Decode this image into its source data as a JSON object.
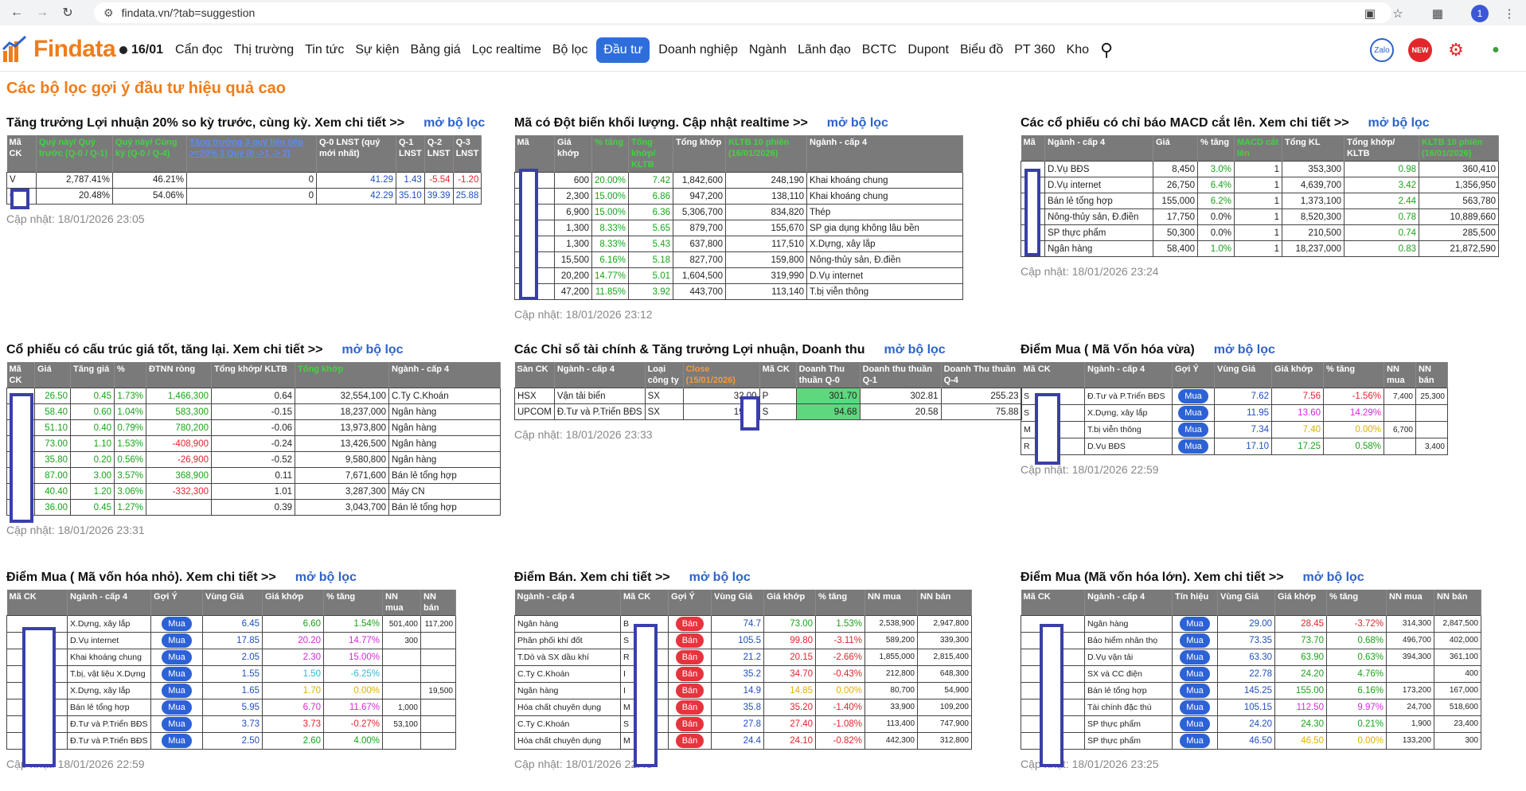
{
  "browser": {
    "url": "findata.vn/?tab=suggestion"
  },
  "nav": {
    "logo": "Findata",
    "date": "16/01",
    "items": [
      "Cẩn đọc",
      "Thị trường",
      "Tin tức",
      "Sự kiện",
      "Bảng giá",
      "Lọc realtime",
      "Bộ lọc",
      "Đầu tư",
      "Doanh nghiệp",
      "Ngành",
      "Lãnh đạo",
      "BCTC",
      "Dupont",
      "Biểu đồ",
      "PT 360",
      "Kho"
    ],
    "active_index": 7,
    "zalo": "Zalo",
    "new_badge": "NEW"
  },
  "page_title": "Các bộ lọc gợi ý đầu tư hiệu quả cao",
  "open_label": "mở bộ lọc",
  "p1": {
    "title": "Tăng trưởng Lợi nhuận 20% so kỳ trước, cùng kỳ. Xem chi tiết >>",
    "headers": [
      "Mã CK",
      "Quý này/ Quý trước (Q-0 / Q-1)",
      "Quý này/ Cùng kỳ (Q-0 / Q-4)",
      "Tăng trưởng 3 quý liên tiếp >=20% 3 Quý (0 ->1 -> 2)",
      "Q-0 LNST (quý mới nhất)",
      "Q-1 LNST",
      "Q-2 LNST",
      "Q-3 LNST"
    ],
    "rows": [
      [
        "V",
        "2,787.41%",
        "46.21%",
        "0",
        "41.29",
        "1.43",
        "-5.54",
        "-1.20"
      ],
      [
        "C",
        "20.48%",
        "54.06%",
        "0",
        "42.29",
        "35.10",
        "39.39",
        "25.88"
      ]
    ],
    "updated": "Cập nhật: 18/01/2026 23:05"
  },
  "p2": {
    "title": "Mã có Đột biến khối lượng. Cập nhật realtime >>",
    "headers": [
      "Mã",
      "Giá khớp",
      "% tăng",
      "Tổng khớp/ KLTB",
      "Tổng khớp",
      "KLTB 10 phiên (16/01/2026)",
      "Ngành - cấp 4"
    ],
    "rows": [
      [
        "",
        "600",
        "20.00%",
        "7.42",
        "1,842,600",
        "248,190",
        "Khai khoáng chung"
      ],
      [
        "",
        "2,300",
        "15.00%",
        "6.86",
        "947,200",
        "138,110",
        "Khai khoáng chung"
      ],
      [
        "",
        "6,900",
        "15.00%",
        "6.36",
        "5,306,700",
        "834,820",
        "Thép"
      ],
      [
        "",
        "1,300",
        "8.33%",
        "5.65",
        "879,700",
        "155,670",
        "SP gia dụng không lâu bền"
      ],
      [
        "",
        "1,300",
        "8.33%",
        "5.43",
        "637,800",
        "117,510",
        "X.Dựng, xây lắp"
      ],
      [
        "",
        "15,500",
        "6.16%",
        "5.18",
        "827,700",
        "159,800",
        "Nông-thủy sản, Đ.điền"
      ],
      [
        "",
        "20,200",
        "14.77%",
        "5.01",
        "1,604,500",
        "319,990",
        "D.Vụ internet"
      ],
      [
        "",
        "47,200",
        "11.85%",
        "3.92",
        "443,700",
        "113,140",
        "T.bị viễn thông"
      ]
    ],
    "updated": "Cập nhật: 18/01/2026 23:12"
  },
  "p3": {
    "title": "Các cổ phiếu có chỉ báo MACD cắt lên. Xem chi tiết >>",
    "headers": [
      "Mã",
      "Ngành - cấp 4",
      "Giá",
      "% tăng",
      "MACD cắt lên",
      "Tổng KL",
      "Tổng khớp/ KLTB",
      "KLTB 10 phiên (16/01/2026)"
    ],
    "rows": [
      [
        "",
        "D.Vụ BĐS",
        "8,450",
        "3.0%",
        "1",
        "353,300",
        "0.98",
        "360,410"
      ],
      [
        "",
        "D.Vụ internet",
        "26,750",
        "6.4%",
        "1",
        "4,639,700",
        "3.42",
        "1,356,950"
      ],
      [
        "",
        "Bán lẻ tổng hợp",
        "155,000",
        "6.2%",
        "1",
        "1,373,100",
        "2.44",
        "563,780"
      ],
      [
        "",
        "Nông-thủy sản, Đ.điền",
        "17,750",
        "0.0%",
        "1",
        "8,520,300",
        "0.78",
        "10,889,660"
      ],
      [
        "",
        "SP thực phẩm",
        "50,300",
        "0.0%",
        "1",
        "210,500",
        "0.74",
        "285,500"
      ],
      [
        "",
        "Ngân hàng",
        "58,400",
        "1.0%",
        "1",
        "18,237,000",
        "0.83",
        "21,872,590"
      ]
    ],
    "updated": "Cập nhật: 18/01/2026 23:24"
  },
  "p4": {
    "title": "Cổ phiếu có cấu trúc giá tốt, tăng lại. Xem chi tiết >>",
    "headers": [
      "Mã CK",
      "Giá",
      "Tăng giá",
      "%",
      "ĐTNN ròng",
      "Tổng khớp/ KLTB",
      "Tổng khớp",
      "Ngành - cấp 4"
    ],
    "rows": [
      [
        "",
        "26.50",
        "0.45",
        "1.73%",
        "1,466,300",
        "0.64",
        "32,554,100",
        "C.Ty C.Khoán"
      ],
      [
        "",
        "58.40",
        "0.60",
        "1.04%",
        "583,300",
        "-0.15",
        "18,237,000",
        "Ngân hàng"
      ],
      [
        "",
        "51.10",
        "0.40",
        "0.79%",
        "780,200",
        "-0.06",
        "13,973,800",
        "Ngân hàng"
      ],
      [
        "",
        "73.00",
        "1.10",
        "1.53%",
        "-408,900",
        "-0.24",
        "13,426,500",
        "Ngân hàng"
      ],
      [
        "",
        "35.80",
        "0.20",
        "0.56%",
        "-26,900",
        "-0.52",
        "9,580,800",
        "Ngân hàng"
      ],
      [
        "",
        "87.00",
        "3.00",
        "3.57%",
        "368,900",
        "0.11",
        "7,671,600",
        "Bán lẻ tổng hợp"
      ],
      [
        "",
        "40.40",
        "1.20",
        "3.06%",
        "-332,300",
        "1.01",
        "3,287,300",
        "Máy CN"
      ],
      [
        "",
        "36.00",
        "0.45",
        "1.27%",
        "",
        "0.39",
        "3,043,700",
        "Bán lẻ tổng hợp"
      ]
    ],
    "updated": "Cập nhật: 18/01/2026 23:31"
  },
  "p5": {
    "title": "Các Chỉ số tài chính & Tăng trưởng Lợi nhuận, Doanh thu",
    "headers": [
      "Sàn CK",
      "Ngành - cấp 4",
      "Loại công ty",
      "Close (15/01/2026)",
      "Mã CK",
      "Doanh Thu thuần Q-0",
      "Doanh thu thuần Q-1",
      "Doanh Thu thuần Q-4"
    ],
    "rows": [
      [
        "HSX",
        "Vận tải biển",
        "SX",
        "32.00",
        "P",
        "301.70",
        "302.81",
        "255.23"
      ],
      [
        "UPCOM",
        "Đ.Tư và P.Triển BĐS",
        "SX",
        "19.00",
        "S",
        "94.68",
        "20.58",
        "75.88"
      ]
    ],
    "updated": "Cập nhật: 18/01/2026 23:33"
  },
  "p6": {
    "title": "Điểm Mua ( Mã Vốn hóa vừa)",
    "headers": [
      "Mã CK",
      "Ngành - cấp 4",
      "Gợi Ý",
      "Vùng Giá",
      "Giá khớp",
      "% tăng",
      "NN mua",
      "NN bán"
    ],
    "rows": [
      [
        "S",
        "Đ.Tư và P.Triển BĐS",
        "Mua",
        "7.62",
        "7.56",
        "-1.56%",
        "7,400",
        "25,300"
      ],
      [
        "S",
        "X.Dựng, xây lắp",
        "Mua",
        "11.95",
        "13.60",
        "14.29%",
        "",
        ""
      ],
      [
        "M",
        "T.bị viễn thông",
        "Mua",
        "7.34",
        "7.40",
        "0.00%",
        "6,700",
        ""
      ],
      [
        "R",
        "D.Vụ BĐS",
        "Mua",
        "17.10",
        "17.25",
        "0.58%",
        "",
        "3,400"
      ]
    ],
    "updated": "Cập nhật: 18/01/2026 22:59"
  },
  "p7": {
    "title": "Điểm Mua ( Mã vốn hóa nhỏ). Xem chi tiết >>",
    "headers": [
      "Mã CK",
      "Ngành - cấp 4",
      "Gợi Ý",
      "Vùng Giá",
      "Giá khớp",
      "% tăng",
      "NN mua",
      "NN bán"
    ],
    "rows": [
      [
        "",
        "X.Dựng, xây lắp",
        "Mua",
        "6.45",
        "6.60",
        "1.54%",
        "501,400",
        "117,200"
      ],
      [
        "",
        "D.Vụ internet",
        "Mua",
        "17.85",
        "20.20",
        "14.77%",
        "300",
        ""
      ],
      [
        "",
        "Khai khoáng chung",
        "Mua",
        "2.05",
        "2.30",
        "15.00%",
        "",
        ""
      ],
      [
        "",
        "T.bị, vật liệu X.Dựng",
        "Mua",
        "1.55",
        "1.50",
        "-6.25%",
        "",
        ""
      ],
      [
        "",
        "X.Dựng, xây lắp",
        "Mua",
        "1.65",
        "1.70",
        "0.00%",
        "",
        "19,500"
      ],
      [
        "",
        "Bán lẻ tổng hợp",
        "Mua",
        "5.95",
        "6.70",
        "11.67%",
        "1,000",
        ""
      ],
      [
        "",
        "Đ.Tư và P.Triển BĐS",
        "Mua",
        "3.73",
        "3.73",
        "-0.27%",
        "53,100",
        ""
      ],
      [
        "",
        "Đ.Tư và P.Triển BĐS",
        "Mua",
        "2.50",
        "2.60",
        "4.00%",
        "",
        ""
      ]
    ],
    "updated": "Cập nhật: 18/01/2026 22:59"
  },
  "p8": {
    "title": "Điểm Bán. Xem chi tiết >>",
    "headers": [
      "Ngành - cấp 4",
      "Mã CK",
      "Gợi Ý",
      "Vùng Giá",
      "Giá khớp",
      "% tăng",
      "NN mua",
      "NN bán"
    ],
    "rows": [
      [
        "Ngân hàng",
        "B",
        "Bán",
        "74.7",
        "73.00",
        "1.53%",
        "2,538,900",
        "2,947,800"
      ],
      [
        "Phân phối khí đốt",
        "S",
        "Bán",
        "105.5",
        "99.80",
        "-3.11%",
        "589,200",
        "339,300"
      ],
      [
        "T.Dò và SX dầu khí",
        "R",
        "Bán",
        "21.2",
        "20.15",
        "-2.66%",
        "1,855,000",
        "2,815,400"
      ],
      [
        "C.Ty C.Khoán",
        "I",
        "Bán",
        "35.2",
        "34.70",
        "-0.43%",
        "212,800",
        "648,300"
      ],
      [
        "Ngân hàng",
        "I",
        "Bán",
        "14.9",
        "14.85",
        "0.00%",
        "80,700",
        "54,900"
      ],
      [
        "Hóa chất chuyên dụng",
        "M",
        "Bán",
        "35.8",
        "35.20",
        "-1.40%",
        "33,900",
        "109,200"
      ],
      [
        "C.Ty C.Khoán",
        "S",
        "Bán",
        "27.8",
        "27.40",
        "-1.08%",
        "113,400",
        "747,900"
      ],
      [
        "Hóa chất chuyên dụng",
        "M",
        "Bán",
        "24.4",
        "24.10",
        "-0.82%",
        "442,300",
        "312,800"
      ]
    ],
    "updated": "Cập nhật: 18/01/2026 22:48"
  },
  "p9": {
    "title": "Điểm Mua (Mã vốn hóa lớn). Xem chi tiết >>",
    "headers": [
      "Mã CK",
      "Ngành - cấp 4",
      "Tín hiệu",
      "Vùng Giá",
      "Giá khớp",
      "% tăng",
      "NN mua",
      "NN bán"
    ],
    "rows": [
      [
        "",
        "Ngân hàng",
        "Mua",
        "29.00",
        "28.45",
        "-3.72%",
        "314,300",
        "2,847,500"
      ],
      [
        "",
        "Bảo hiểm nhân thọ",
        "Mua",
        "73.35",
        "73.70",
        "0.68%",
        "496,700",
        "402,000"
      ],
      [
        "",
        "D.Vụ vận tải",
        "Mua",
        "63.30",
        "63.90",
        "0.63%",
        "394,300",
        "361,100"
      ],
      [
        "",
        "SX và CC điện",
        "Mua",
        "22.78",
        "24.20",
        "4.76%",
        "",
        "400"
      ],
      [
        "",
        "Bán lẻ tổng hợp",
        "Mua",
        "145.25",
        "155.00",
        "6.16%",
        "173,200",
        "167,000"
      ],
      [
        "",
        "Tài chính đặc thù",
        "Mua",
        "105.15",
        "112.50",
        "9.97%",
        "24,700",
        "518,600"
      ],
      [
        "",
        "SP thực phẩm",
        "Mua",
        "24.20",
        "24.30",
        "0.21%",
        "1,900",
        "23,400"
      ],
      [
        "",
        "SP thực phẩm",
        "Mua",
        "46.50",
        "46.50",
        "0.00%",
        "133,200",
        "300"
      ]
    ],
    "updated": "Cập nhật: 18/01/2026 23:25"
  }
}
